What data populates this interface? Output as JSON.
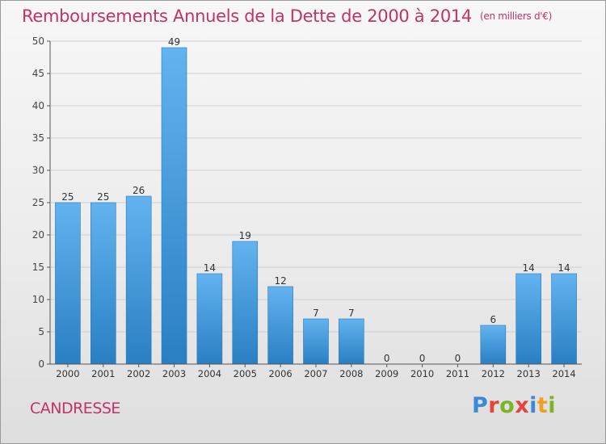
{
  "title": "Remboursements Annuels de la Dette de 2000 à 2014",
  "title_unit": "(en milliers d'€)",
  "commune": "CANDRESSE",
  "logo": {
    "text": "Proxiti",
    "letter_colors": [
      "#3a8ad8",
      "#e8423c",
      "#7ab526",
      "#e8423c",
      "#3a8ad8",
      "#f0a020",
      "#7ab526"
    ]
  },
  "colors": {
    "accent": "#c0336a",
    "bar_light": "#62b3ef",
    "bar_dark": "#2a7fc3",
    "axis": "#555555",
    "grid": "#cfcfcf"
  },
  "chart_data": {
    "type": "bar",
    "categories": [
      "2000",
      "2001",
      "2002",
      "2003",
      "2004",
      "2005",
      "2006",
      "2007",
      "2008",
      "2009",
      "2010",
      "2011",
      "2012",
      "2013",
      "2014"
    ],
    "values": [
      25,
      25,
      26,
      49,
      14,
      19,
      12,
      7,
      7,
      0,
      0,
      0,
      6,
      14,
      14
    ],
    "title": "Remboursements Annuels de la Dette de 2000 à 2014",
    "xlabel": "",
    "ylabel": "",
    "ylim": [
      0,
      50
    ],
    "yticks": [
      0,
      5,
      10,
      15,
      20,
      25,
      30,
      35,
      40,
      45,
      50
    ],
    "grid": true,
    "data_labels": true
  }
}
